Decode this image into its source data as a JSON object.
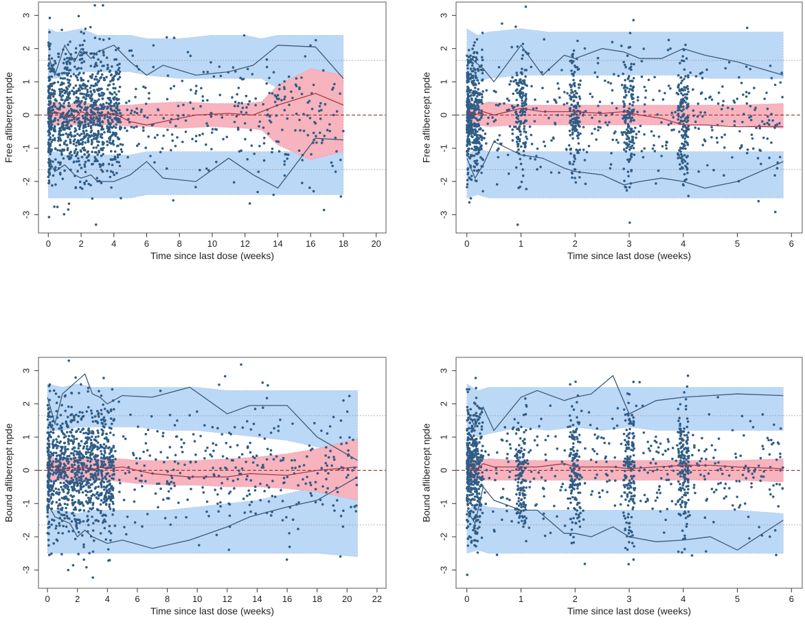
{
  "chart_data": [
    {
      "id": "p1",
      "type": "scatter",
      "title": "",
      "xlabel": "Time since last dose  (weeks)",
      "ylabel": "Free aflibercept npde",
      "xlim": [
        -0.6,
        20.6
      ],
      "ylim": [
        -3.55,
        3.4
      ],
      "xticks": [
        0,
        2,
        4,
        6,
        8,
        10,
        12,
        14,
        16,
        18,
        20
      ],
      "yticks": [
        -3,
        -2,
        -1,
        0,
        1,
        2,
        3
      ],
      "reference_lines": [
        -1.645,
        0,
        1.645
      ],
      "bands": {
        "x": [
          0,
          0.5,
          1,
          2,
          3,
          4,
          5,
          6,
          8,
          10,
          12,
          13,
          14,
          16,
          18
        ],
        "upper_hi": [
          2.6,
          2.5,
          2.5,
          2.6,
          2.4,
          2.4,
          2.4,
          2.3,
          2.3,
          2.4,
          2.4,
          2.3,
          2.4,
          2.4,
          2.4
        ],
        "upper_lo": [
          1.1,
          1.1,
          1.2,
          1.3,
          1.3,
          1.3,
          1.3,
          1.2,
          1.1,
          1.1,
          1.1,
          1.1,
          0.8,
          0.8,
          0.9
        ],
        "mid_hi": [
          0.4,
          0.4,
          0.3,
          0.4,
          0.3,
          0.3,
          0.3,
          0.35,
          0.4,
          0.35,
          0.35,
          0.4,
          0.9,
          1.4,
          1.2
        ],
        "mid_lo": [
          -0.3,
          -0.3,
          -0.3,
          -0.3,
          -0.3,
          -0.3,
          -0.35,
          -0.35,
          -0.4,
          -0.35,
          -0.4,
          -0.45,
          -0.9,
          -1.35,
          -1.1
        ],
        "lower_hi": [
          -1.1,
          -1.1,
          -1.2,
          -1.2,
          -1.2,
          -1.2,
          -1.2,
          -1.1,
          -1.1,
          -1.1,
          -1.1,
          -1.1,
          -1.1,
          -1.1,
          -1.1
        ],
        "lower_lo": [
          -2.5,
          -2.5,
          -2.5,
          -2.5,
          -2.5,
          -2.5,
          -2.5,
          -2.4,
          -2.4,
          -2.4,
          -2.4,
          -2.4,
          -2.4,
          -2.4,
          -2.4
        ]
      },
      "observed_quantiles": {
        "x": [
          0,
          0.4,
          1,
          1.6,
          2,
          2.6,
          3,
          4,
          5,
          6,
          7,
          9,
          11,
          12.5,
          14,
          16.3,
          18
        ],
        "upper": [
          1.8,
          1.2,
          2.1,
          1.6,
          2.0,
          1.7,
          1.9,
          2.1,
          1.6,
          1.2,
          1.5,
          1.2,
          1.3,
          1.5,
          2.1,
          2.05,
          1.1
        ],
        "median": [
          0.0,
          0.1,
          0.0,
          -0.1,
          0.1,
          0.0,
          0.0,
          0.05,
          -0.2,
          -0.3,
          -0.2,
          0.0,
          0.05,
          0.0,
          0.3,
          0.65,
          0.3
        ],
        "lower": [
          -1.3,
          -1.7,
          -1.5,
          -1.8,
          -1.9,
          -1.8,
          -2.0,
          -2.0,
          -1.8,
          -1.4,
          -1.9,
          -2.0,
          -1.3,
          -1.8,
          -2.2,
          -0.7,
          -0.75
        ]
      }
    },
    {
      "id": "p2",
      "type": "scatter",
      "title": "",
      "xlabel": "Time since last dose (weeks)",
      "ylabel": "Free aflibercept npde",
      "xlim": [
        -0.2,
        6.2
      ],
      "ylim": [
        -3.55,
        3.4
      ],
      "xticks": [
        0,
        1,
        2,
        3,
        4,
        5,
        6
      ],
      "yticks": [
        -3,
        -2,
        -1,
        0,
        1,
        2,
        3
      ],
      "reference_lines": [
        -1.645,
        0,
        1.645
      ],
      "bands": {
        "x": [
          0,
          0.2,
          0.4,
          1,
          1.5,
          2,
          2.5,
          3,
          3.5,
          4,
          4.5,
          5,
          5.85
        ],
        "upper_hi": [
          2.6,
          2.4,
          2.5,
          2.6,
          2.5,
          2.5,
          2.5,
          2.5,
          2.5,
          2.5,
          2.5,
          2.5,
          2.5
        ],
        "upper_lo": [
          1.2,
          1.0,
          1.1,
          1.2,
          1.2,
          1.2,
          1.2,
          1.2,
          1.2,
          1.2,
          1.1,
          1.1,
          1.1
        ],
        "mid_hi": [
          0.4,
          0.3,
          0.4,
          0.3,
          0.3,
          0.3,
          0.3,
          0.3,
          0.3,
          0.3,
          0.3,
          0.3,
          0.35
        ],
        "mid_lo": [
          -0.3,
          -0.3,
          -0.35,
          -0.3,
          -0.3,
          -0.3,
          -0.3,
          -0.3,
          -0.3,
          -0.3,
          -0.3,
          -0.3,
          -0.4
        ],
        "lower_hi": [
          -1.2,
          -1.0,
          -1.1,
          -1.1,
          -1.1,
          -1.1,
          -1.1,
          -1.1,
          -1.1,
          -1.1,
          -1.1,
          -1.1,
          -1.1
        ],
        "lower_lo": [
          -2.5,
          -2.4,
          -2.5,
          -2.5,
          -2.5,
          -2.5,
          -2.5,
          -2.5,
          -2.5,
          -2.5,
          -2.5,
          -2.5,
          -2.5
        ]
      },
      "observed_quantiles": {
        "x": [
          0,
          0.15,
          0.3,
          0.5,
          1,
          1.4,
          1.8,
          2,
          2.5,
          2.9,
          3.2,
          3.6,
          4,
          4.4,
          5,
          5.85
        ],
        "upper": [
          1.8,
          1.6,
          1.4,
          1.0,
          2.1,
          1.2,
          1.8,
          1.7,
          2.0,
          1.9,
          1.7,
          1.7,
          2.0,
          1.8,
          1.6,
          1.2
        ],
        "median": [
          0.1,
          0.0,
          0.1,
          0.0,
          0.2,
          0.1,
          0.1,
          0.1,
          0.05,
          0.1,
          0.0,
          -0.1,
          -0.3,
          -0.3,
          -0.35,
          -0.35
        ],
        "lower": [
          -1.3,
          -1.9,
          -1.5,
          -0.8,
          -1.2,
          -1.3,
          -1.6,
          -1.7,
          -1.8,
          -2.1,
          -2.0,
          -1.9,
          -2.0,
          -2.2,
          -2.0,
          -1.4
        ]
      }
    },
    {
      "id": "p3",
      "type": "scatter",
      "title": "",
      "xlabel": "Time since last dose  (weeks)",
      "ylabel": "Bound aflibercept npde",
      "xlim": [
        -0.6,
        22.6
      ],
      "ylim": [
        -3.55,
        3.4
      ],
      "xticks": [
        0,
        2,
        4,
        6,
        8,
        10,
        12,
        14,
        16,
        18,
        20,
        22
      ],
      "yticks": [
        -3,
        -2,
        -1,
        0,
        1,
        2,
        3
      ],
      "reference_lines": [
        -1.645,
        0,
        1.645
      ],
      "bands": {
        "x": [
          0,
          1,
          2,
          3,
          4,
          5,
          6,
          8,
          10,
          12,
          14,
          16,
          18,
          20.7
        ],
        "upper_hi": [
          2.6,
          2.5,
          2.6,
          2.5,
          2.5,
          2.5,
          2.5,
          2.5,
          2.5,
          2.4,
          2.4,
          2.4,
          2.4,
          2.4
        ],
        "upper_lo": [
          1.2,
          1.2,
          1.3,
          1.3,
          1.3,
          1.3,
          1.3,
          1.2,
          1.2,
          1.1,
          1.0,
          0.9,
          0.7,
          0.4
        ],
        "mid_hi": [
          0.4,
          0.35,
          0.4,
          0.35,
          0.35,
          0.35,
          0.3,
          0.3,
          0.3,
          0.35,
          0.4,
          0.5,
          0.65,
          0.95
        ],
        "mid_lo": [
          -0.3,
          -0.3,
          -0.35,
          -0.3,
          -0.3,
          -0.35,
          -0.4,
          -0.45,
          -0.45,
          -0.5,
          -0.5,
          -0.55,
          -0.65,
          -0.9
        ],
        "lower_hi": [
          -1.2,
          -1.2,
          -1.3,
          -1.2,
          -1.2,
          -1.2,
          -1.2,
          -1.2,
          -1.1,
          -1.0,
          -0.9,
          -0.7,
          -0.5,
          -0.3
        ],
        "lower_lo": [
          -2.5,
          -2.5,
          -2.5,
          -2.5,
          -2.5,
          -2.5,
          -2.5,
          -2.5,
          -2.5,
          -2.5,
          -2.5,
          -2.5,
          -2.5,
          -2.6
        ]
      },
      "observed_quantiles": {
        "x": [
          0,
          0.5,
          1,
          1.5,
          2,
          2.5,
          3,
          3.5,
          4,
          5,
          7,
          9.5,
          12,
          13.5,
          16,
          18,
          20.7
        ],
        "upper": [
          2.2,
          1.4,
          2.3,
          2.5,
          2.7,
          2.9,
          2.3,
          2.2,
          2.0,
          2.25,
          2.2,
          2.5,
          1.7,
          1.95,
          1.95,
          1.0,
          0.3
        ],
        "median": [
          0.1,
          0.1,
          0.0,
          0.1,
          0.05,
          0.1,
          0.0,
          0.1,
          0.05,
          0.1,
          -0.1,
          -0.2,
          -0.2,
          -0.1,
          -0.15,
          0.0,
          0.1
        ],
        "lower": [
          -1.0,
          -1.4,
          -1.5,
          -1.6,
          -2.0,
          -1.8,
          -2.0,
          -2.1,
          -2.2,
          -2.1,
          -2.35,
          -2.1,
          -1.7,
          -1.4,
          -1.1,
          -0.9,
          -0.2
        ]
      }
    },
    {
      "id": "p4",
      "type": "scatter",
      "title": "",
      "xlabel": "Time since last dose (weeks)",
      "ylabel": "Bound aflibercept npde",
      "xlim": [
        -0.2,
        6.2
      ],
      "ylim": [
        -3.55,
        3.4
      ],
      "xticks": [
        0,
        1,
        2,
        3,
        4,
        5,
        6
      ],
      "yticks": [
        -3,
        -2,
        -1,
        0,
        1,
        2,
        3
      ],
      "reference_lines": [
        -1.645,
        0,
        1.645
      ],
      "bands": {
        "x": [
          0,
          0.2,
          0.4,
          1,
          1.5,
          2,
          2.5,
          3,
          3.5,
          4,
          4.5,
          5,
          5.85
        ],
        "upper_hi": [
          2.6,
          2.4,
          2.5,
          2.5,
          2.5,
          2.5,
          2.5,
          2.5,
          2.5,
          2.5,
          2.5,
          2.5,
          2.5
        ],
        "upper_lo": [
          1.2,
          1.0,
          1.1,
          1.3,
          1.2,
          1.3,
          1.2,
          1.3,
          1.2,
          1.2,
          1.2,
          1.2,
          1.2
        ],
        "mid_hi": [
          0.4,
          0.3,
          0.35,
          0.3,
          0.3,
          0.3,
          0.3,
          0.3,
          0.3,
          0.3,
          0.3,
          0.3,
          0.35
        ],
        "mid_lo": [
          -0.3,
          -0.3,
          -0.3,
          -0.3,
          -0.3,
          -0.3,
          -0.3,
          -0.3,
          -0.3,
          -0.3,
          -0.3,
          -0.3,
          -0.35
        ],
        "lower_hi": [
          -1.2,
          -1.0,
          -1.1,
          -1.2,
          -1.2,
          -1.2,
          -1.2,
          -1.2,
          -1.2,
          -1.2,
          -1.2,
          -1.2,
          -1.3
        ],
        "lower_lo": [
          -2.5,
          -2.4,
          -2.5,
          -2.5,
          -2.5,
          -2.5,
          -2.5,
          -2.5,
          -2.5,
          -2.5,
          -2.5,
          -2.5,
          -2.5
        ]
      },
      "observed_quantiles": {
        "x": [
          0,
          0.15,
          0.3,
          0.5,
          1,
          1.3,
          1.8,
          2,
          2.3,
          2.7,
          3,
          3.5,
          4,
          4.5,
          5,
          5.85
        ],
        "upper": [
          1.8,
          1.3,
          1.9,
          1.2,
          2.2,
          2.4,
          2.1,
          2.2,
          2.3,
          2.85,
          1.7,
          2.1,
          2.2,
          2.25,
          2.3,
          2.25
        ],
        "median": [
          0.1,
          0.0,
          0.2,
          0.1,
          0.1,
          0.1,
          0.2,
          0.1,
          0.1,
          0.1,
          0.05,
          0.1,
          0.15,
          0.15,
          0.1,
          0.05
        ],
        "lower": [
          -1.2,
          -1.6,
          -0.5,
          -0.9,
          -1.2,
          -1.2,
          -1.9,
          -1.9,
          -2.0,
          -1.7,
          -2.0,
          -2.15,
          -2.1,
          -2.0,
          -2.4,
          -1.5
        ]
      }
    }
  ]
}
